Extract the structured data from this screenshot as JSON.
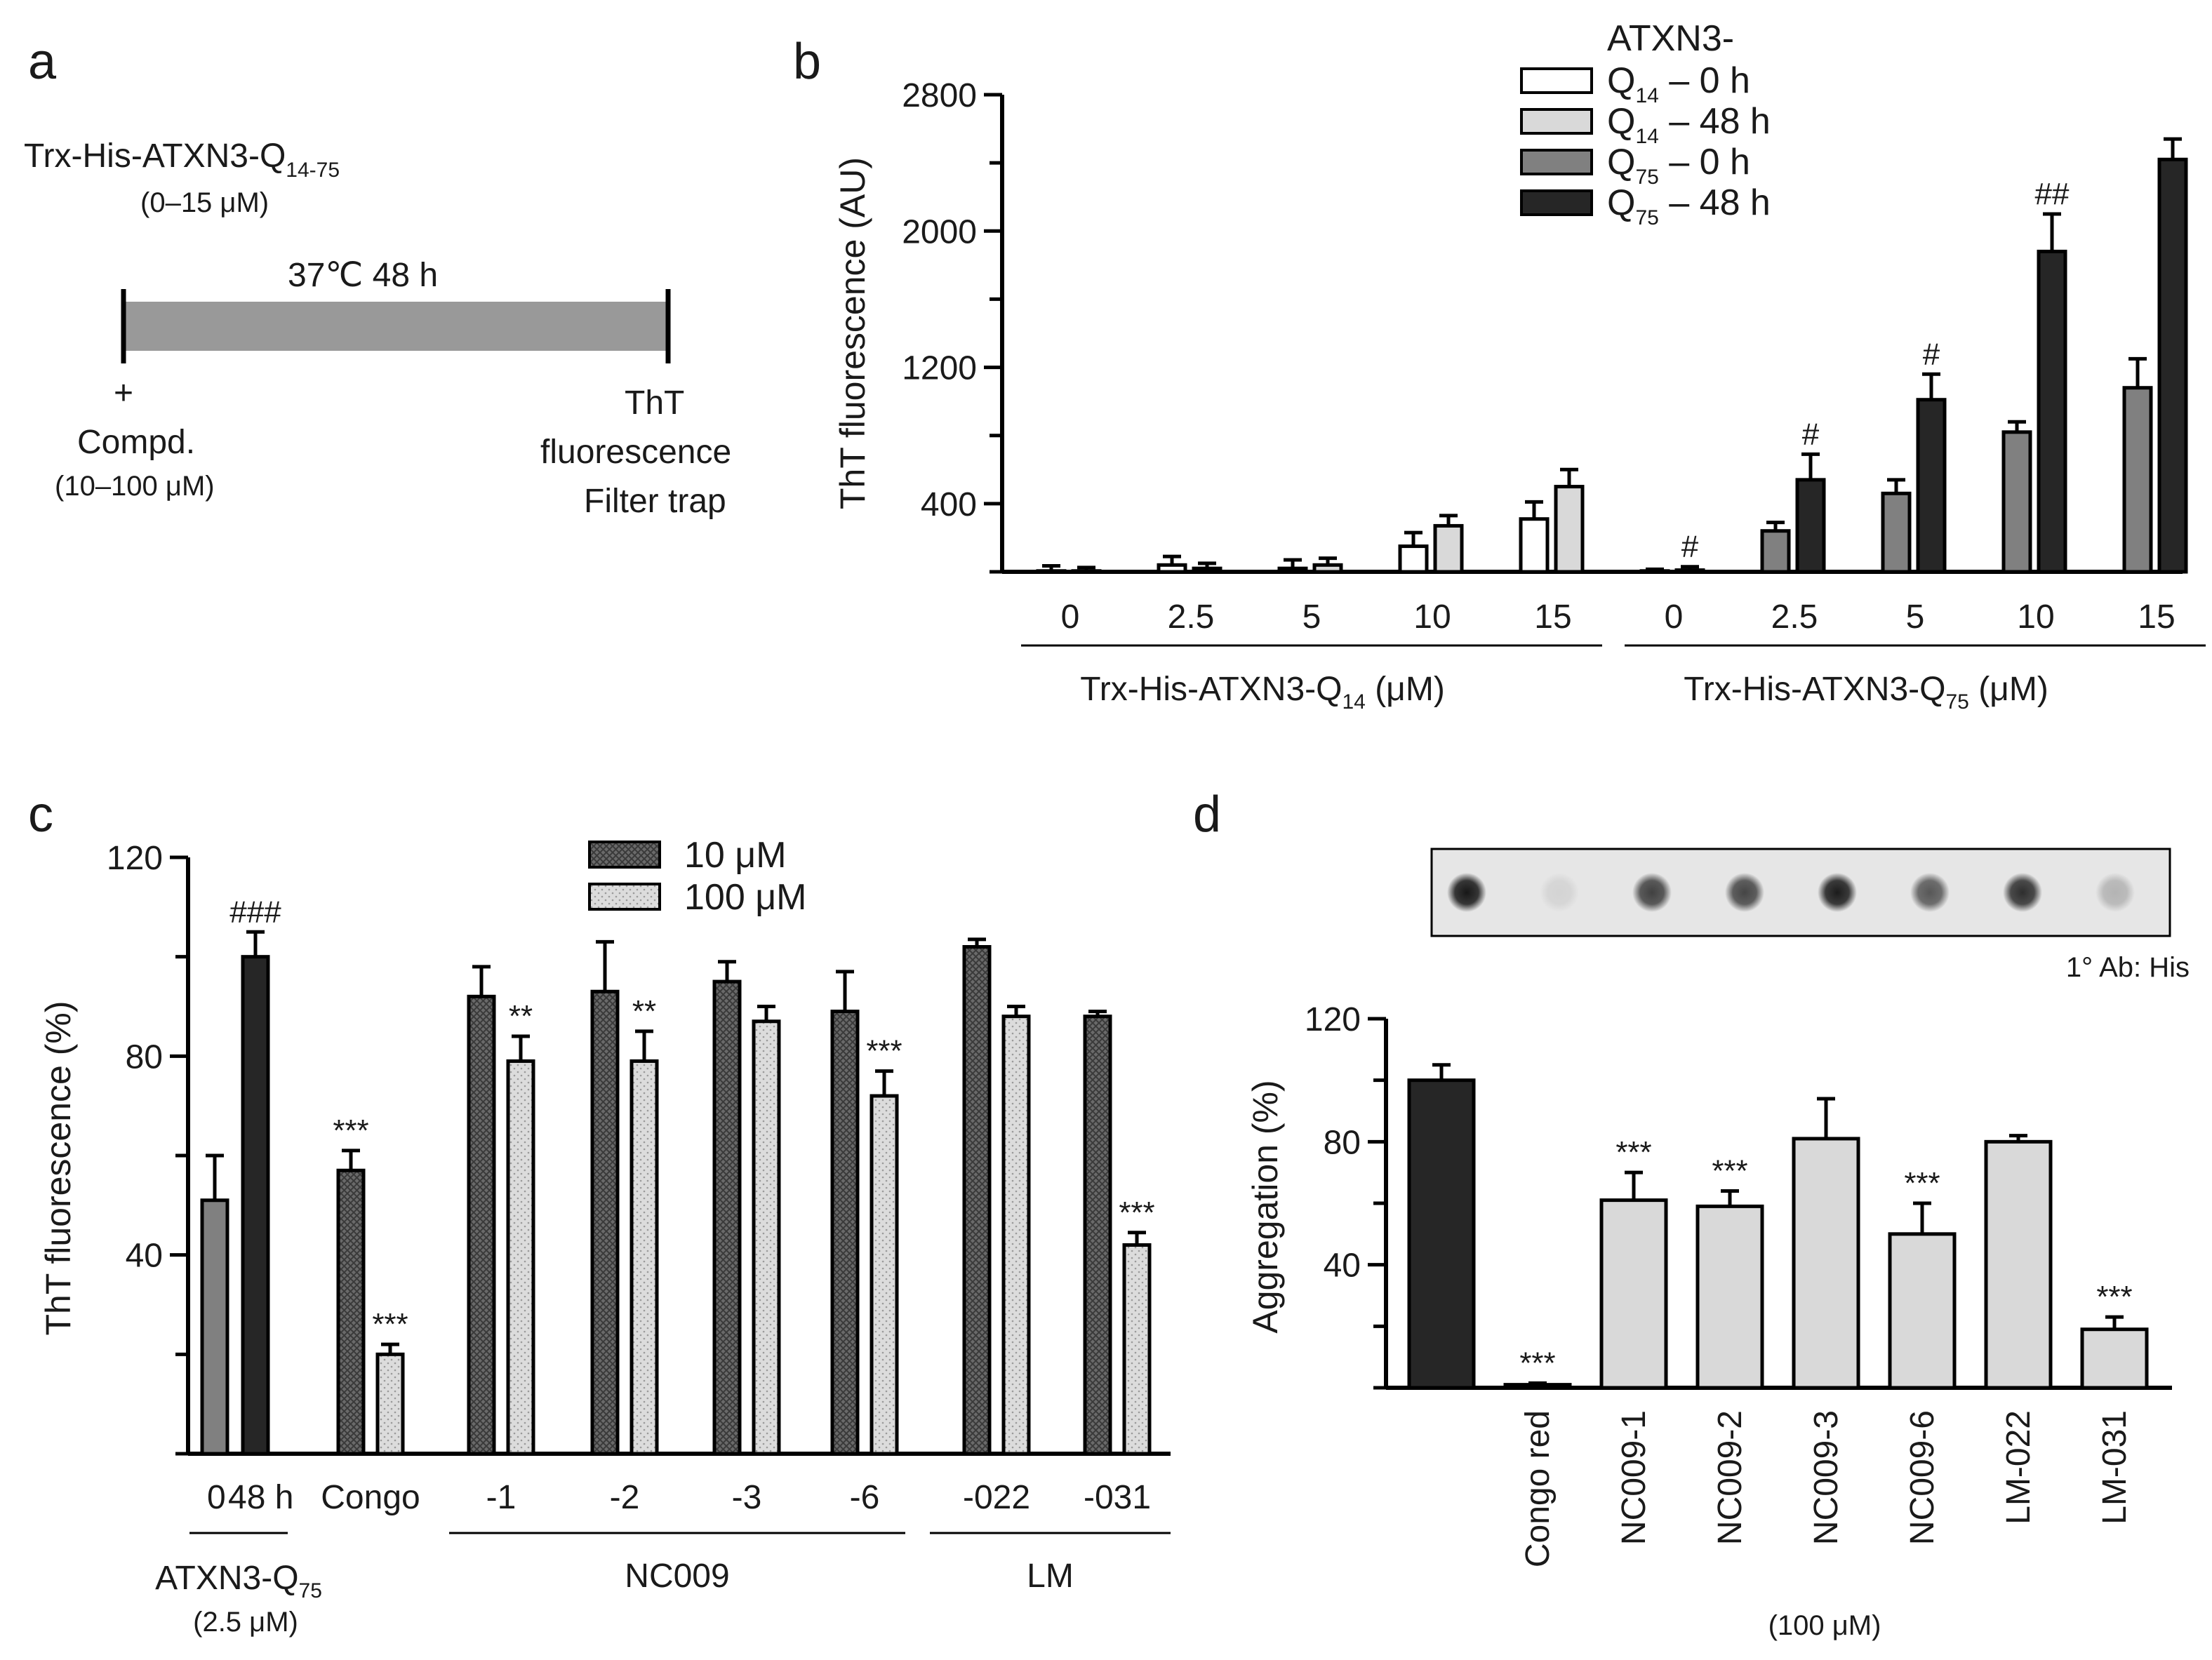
{
  "panel_labels": {
    "a": "a",
    "b": "b",
    "c": "c",
    "d": "d"
  },
  "schematic": {
    "protein_prefix": "Trx-His-ATXN3-Q",
    "protein_sub": "14-75",
    "protein_conc": "(0–15 μM)",
    "condition": "37℃ 48 h",
    "plus": "+",
    "compound": "Compd.",
    "compound_conc": "(10–100 μM)",
    "readout_1": "ThT",
    "readout_2": "fluorescence",
    "readout_3": "Filter trap"
  },
  "colors": {
    "q14_0h": "#ffffff",
    "q14_48h": "#d9d9d9",
    "q75_0h": "#808080",
    "q75_48h": "#262626",
    "bar_gray": "#808080",
    "bar_dark": "#262626",
    "bar_light": "#d9d9d9",
    "pattern_dark": "#5a5a5a",
    "pattern_light": "#d4d4d4",
    "schematic_bar": "#999999"
  },
  "chart_data": [
    {
      "panel": "b",
      "type": "bar",
      "ylabel": "ThT fluorescence (AU)",
      "ylim": [
        0,
        2800
      ],
      "yticks": [
        "400",
        "1200",
        "2000",
        "2800"
      ],
      "legend_title": "ATXN3-",
      "legend": [
        {
          "q": "Q",
          "sub": "14",
          "time": "– 0 h"
        },
        {
          "q": "Q",
          "sub": "14",
          "time": "– 48 h"
        },
        {
          "q": "Q",
          "sub": "75",
          "time": "– 0 h"
        },
        {
          "q": "Q",
          "sub": "75",
          "time": "– 48 h"
        }
      ],
      "legend_placement": "top-right",
      "groups": [
        {
          "label_prefix": "Trx-His-ATXN3-Q",
          "label_sub": "14",
          "label_unit": " (μM)",
          "categories": [
            "0",
            "2.5",
            "5",
            "10",
            "15"
          ],
          "series": [
            {
              "values": [
                5,
                40,
                20,
                150,
                310
              ],
              "errors": [
                30,
                50,
                50,
                80,
                100
              ],
              "annotations": [
                "",
                "",
                "",
                "",
                ""
              ]
            },
            {
              "values": [
                5,
                20,
                40,
                270,
                500
              ],
              "errors": [
                20,
                30,
                40,
                60,
                100
              ],
              "annotations": [
                "",
                "",
                "",
                "",
                ""
              ]
            }
          ]
        },
        {
          "label_prefix": "Trx-His-ATXN3-Q",
          "label_sub": "75",
          "label_unit": " (μM)",
          "categories": [
            "0",
            "2.5",
            "5",
            "10",
            "15"
          ],
          "series": [
            {
              "values": [
                5,
                240,
                460,
                820,
                1080
              ],
              "errors": [
                10,
                50,
                80,
                60,
                170
              ],
              "annotations": [
                "",
                "",
                "",
                "",
                ""
              ]
            },
            {
              "values": [
                10,
                540,
                1010,
                1880,
                2420
              ],
              "errors": [
                20,
                150,
                150,
                220,
                120
              ],
              "annotations": [
                "#",
                "#",
                "#",
                "##",
                ""
              ]
            }
          ]
        }
      ]
    },
    {
      "panel": "c",
      "type": "bar",
      "ylabel": "ThT fluorescence (%)",
      "ylim": [
        0,
        120
      ],
      "yticks": [
        "40",
        "80",
        "120"
      ],
      "legend": [
        "10 μM",
        "100 μM"
      ],
      "legend_placement": "top",
      "control": {
        "categories": [
          "0",
          "48 h"
        ],
        "values": [
          51,
          100
        ],
        "errors": [
          9,
          5
        ],
        "annotations": [
          "",
          "###"
        ],
        "group_label_prefix": "ATXN3-Q",
        "group_label_sub": "75",
        "group_label_conc": "(2.5 μM)"
      },
      "compound_groups": [
        {
          "label": "",
          "categories": [
            "Congo"
          ],
          "values_10uM": [
            57
          ],
          "errors_10uM": [
            4
          ],
          "values_100uM": [
            20
          ],
          "errors_100uM": [
            2
          ],
          "annotations_10uM": [
            "***"
          ],
          "annotations_100uM": [
            "***"
          ]
        },
        {
          "label": "NC009",
          "categories": [
            "-1",
            "-2",
            "-3",
            "-6"
          ],
          "values_10uM": [
            92,
            93,
            95,
            89
          ],
          "errors_10uM": [
            6,
            10,
            4,
            8
          ],
          "values_100uM": [
            79,
            79,
            87,
            72
          ],
          "errors_100uM": [
            5,
            6,
            3,
            5
          ],
          "annotations_10uM": [
            "",
            "",
            "",
            ""
          ],
          "annotations_100uM": [
            "**",
            "**",
            "",
            "***"
          ]
        },
        {
          "label": "LM",
          "categories": [
            "-022",
            "-031"
          ],
          "values_10uM": [
            102,
            88
          ],
          "errors_10uM": [
            1.5,
            1
          ],
          "values_100uM": [
            88,
            42
          ],
          "errors_100uM": [
            2,
            2.5
          ],
          "annotations_10uM": [
            "",
            ""
          ],
          "annotations_100uM": [
            "",
            "***"
          ]
        }
      ]
    },
    {
      "panel": "d",
      "type": "bar",
      "ylabel": "Aggregation (%)",
      "ylim": [
        0,
        120
      ],
      "yticks": [
        "40",
        "80",
        "120"
      ],
      "categories": [
        "",
        "Congo red",
        "NC009-1",
        "NC009-2",
        "NC009-3",
        "NC009-6",
        "LM-022",
        "LM-031"
      ],
      "values": [
        100,
        1,
        61,
        59,
        81,
        50,
        80,
        19
      ],
      "errors": [
        5,
        0.5,
        9,
        5,
        13,
        10,
        2,
        4
      ],
      "annotations": [
        "",
        "***",
        "***",
        "***",
        "",
        "***",
        "",
        "***"
      ],
      "xlabel": "(100 μM)",
      "blot_label": "1° Ab: His",
      "blot_intensity": [
        0.9,
        0.08,
        0.72,
        0.7,
        0.88,
        0.62,
        0.8,
        0.22
      ]
    }
  ]
}
